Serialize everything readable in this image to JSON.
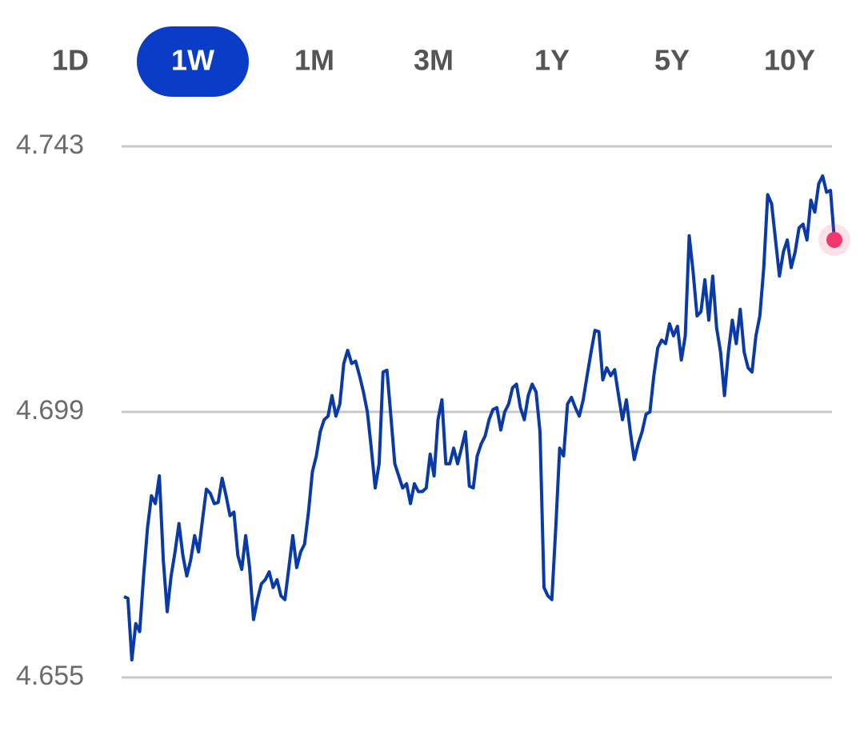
{
  "tabs": {
    "labels": [
      "1D",
      "1W",
      "1M",
      "3M",
      "1Y",
      "5Y",
      "10Y"
    ],
    "selected": 1,
    "color": "#0a3cc8"
  },
  "chart_data": {
    "type": "line",
    "color": "#0a3aa8",
    "end_color": "#f0386b",
    "ylim": [
      4.655,
      4.743
    ],
    "yticks": [
      4.655,
      4.699,
      4.743
    ],
    "grid": true,
    "values": [
      4.6684,
      4.6681,
      4.6579,
      4.6639,
      4.6626,
      4.6718,
      4.6798,
      4.6851,
      4.6838,
      4.6884,
      4.6745,
      4.6659,
      4.6718,
      4.6758,
      4.6805,
      4.6752,
      4.6718,
      4.6745,
      4.6785,
      4.6758,
      4.6811,
      4.6862,
      4.6855,
      4.6838,
      4.684,
      4.688,
      4.6851,
      4.6818,
      4.6824,
      4.6752,
      4.6729,
      4.6785,
      4.6732,
      4.6646,
      4.6679,
      4.6705,
      4.6712,
      4.6725,
      4.6699,
      4.6712,
      4.6685,
      4.6679,
      4.6732,
      4.6785,
      4.6732,
      4.6758,
      4.6771,
      4.6824,
      4.6891,
      4.6917,
      4.6957,
      4.6977,
      4.6983,
      4.7017,
      4.6983,
      4.7003,
      4.707,
      4.7092,
      4.707,
      4.7074,
      4.705,
      4.7023,
      4.699,
      4.693,
      4.6864,
      4.6904,
      4.7056,
      4.7059,
      4.6983,
      4.6904,
      4.6884,
      4.6864,
      4.6871,
      4.6838,
      4.6871,
      4.6858,
      4.6858,
      4.6864,
      4.692,
      4.6884,
      4.6977,
      4.701,
      4.6904,
      4.6904,
      4.693,
      4.6904,
      4.693,
      4.6957,
      4.6867,
      4.6864,
      4.6917,
      4.6937,
      4.695,
      4.6977,
      4.6994,
      4.6997,
      4.696,
      4.699,
      4.7003,
      4.703,
      4.7036,
      4.6997,
      4.6977,
      4.7017,
      4.7036,
      4.7023,
      4.6957,
      4.6699,
      4.6685,
      4.6679,
      4.6798,
      4.693,
      4.6917,
      4.7003,
      4.7014,
      4.6997,
      4.6983,
      4.701,
      4.705,
      4.7089,
      4.7125,
      4.7123,
      4.7043,
      4.7063,
      4.705,
      4.706,
      4.7017,
      4.6977,
      4.701,
      4.6957,
      4.6911,
      4.6937,
      4.6957,
      4.6986,
      4.699,
      4.705,
      4.7096,
      4.7109,
      4.7103,
      4.7136,
      4.7116,
      4.7132,
      4.7076,
      4.7116,
      4.7282,
      4.7222,
      4.7149,
      4.7156,
      4.7209,
      4.7142,
      4.7215,
      4.7129,
      4.7089,
      4.7017,
      4.7089,
      4.7142,
      4.7103,
      4.716,
      4.7089,
      4.7063,
      4.7056,
      4.7116,
      4.7149,
      4.7229,
      4.735,
      4.7335,
      4.7275,
      4.7215,
      4.7255,
      4.7275,
      4.7229,
      4.7255,
      4.7295,
      4.7301,
      4.7275,
      4.7341,
      4.7321,
      4.7368,
      4.7381,
      4.7354,
      4.7357,
      4.7275
    ]
  }
}
